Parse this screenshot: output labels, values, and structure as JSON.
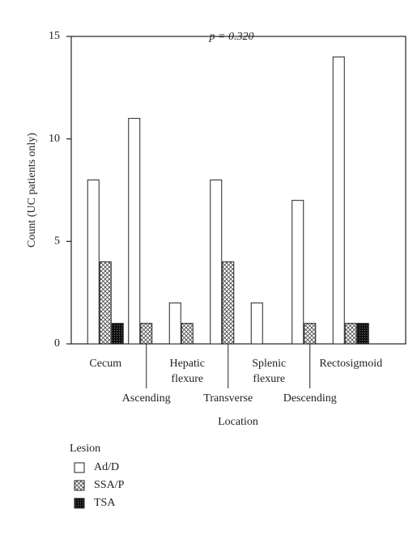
{
  "chart_data": {
    "type": "bar",
    "annotation": "p = 0.320",
    "x_label": "Location",
    "y_label": "Count (UC patients only)",
    "categories": [
      "Cecum",
      "Ascending",
      "Hepatic flexure",
      "Transverse",
      "Splenic flexure",
      "Descending",
      "Rectosigmoid"
    ],
    "series": [
      {
        "name": "Ad/D",
        "color": "#ffffff",
        "pattern": "none",
        "values": [
          8,
          11,
          2,
          8,
          2,
          7,
          14
        ]
      },
      {
        "name": "SSA/P",
        "color": "#ffffff",
        "pattern": "crosshatch",
        "values": [
          4,
          1,
          1,
          4,
          0,
          1,
          1
        ]
      },
      {
        "name": "TSA",
        "color": "#222222",
        "pattern": "checker",
        "values": [
          1,
          0,
          0,
          0,
          0,
          0,
          1
        ]
      }
    ],
    "legend_title": "Lesion",
    "legend_position": "bottom-left",
    "ylim": [
      0,
      15
    ],
    "yticks": [
      0,
      5,
      10,
      15
    ]
  }
}
